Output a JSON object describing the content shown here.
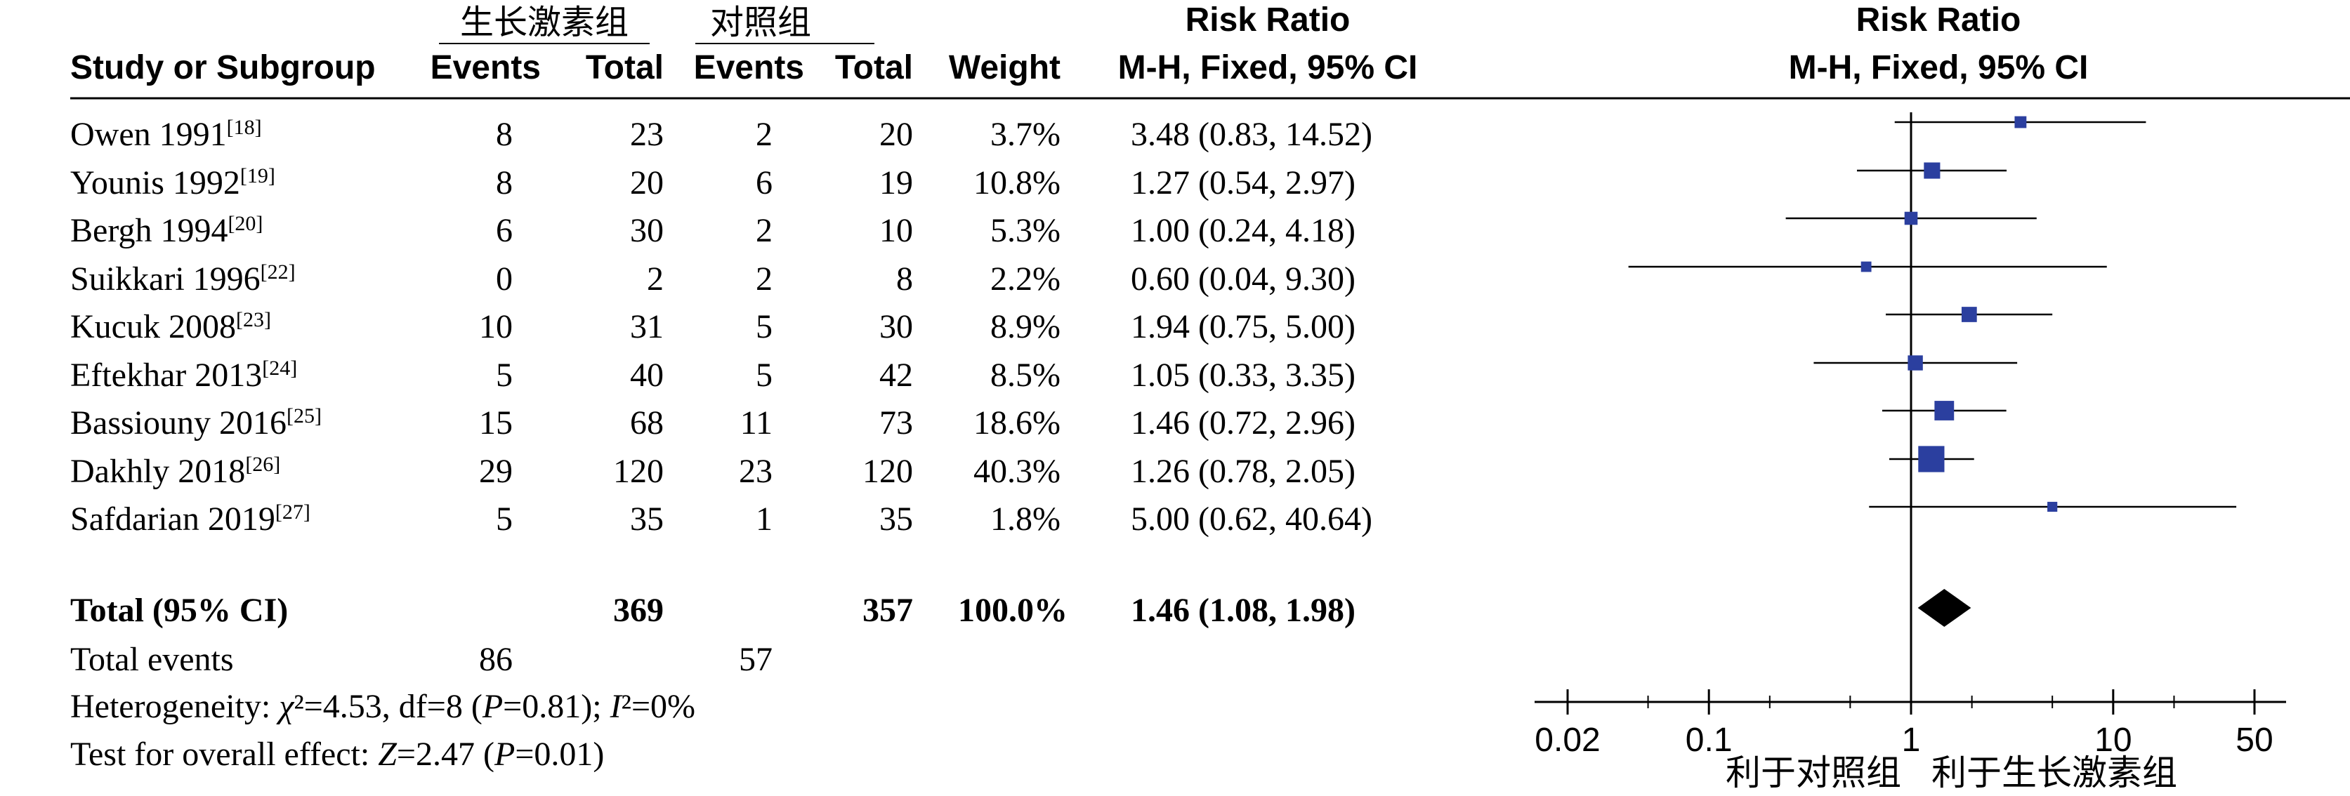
{
  "headers": {
    "group1": "生长激素组",
    "group2": "对照组",
    "study": "Study or Subgroup",
    "events1": "Events",
    "total1": "Total",
    "events2": "Events",
    "total2": "Total",
    "weight": "Weight",
    "rr_title": "Risk Ratio",
    "rr_method": "M-H, Fixed, 95% CI",
    "plot_title": "Risk Ratio",
    "plot_method": "M-H, Fixed, 95% CI"
  },
  "summary": {
    "total_label": "Total (95% CI)",
    "total1": "369",
    "total2": "357",
    "weight": "100.0%",
    "ci_text": "1.46 (1.08, 1.98)",
    "events_label": "Total events",
    "events1": "86",
    "events2": "57",
    "heterogeneity": "Heterogeneity: χ²=4.53, df=8 (P=0.81); I²=0%",
    "overall_effect": "Test for overall effect: Z=2.47 (P=0.01)"
  },
  "axis_labels": {
    "favours_control": "利于对照组",
    "favours_treatment": "利于生长激素组"
  },
  "chart_data": {
    "type": "forest",
    "x_scale": "log",
    "xlim": [
      0.02,
      50
    ],
    "x_ticks": [
      0.02,
      0.1,
      1,
      10,
      50
    ],
    "x_tick_labels": [
      "0.02",
      "0.1",
      "1",
      "10",
      "50"
    ],
    "reference_line": 1,
    "studies": [
      {
        "name": "Owen 1991",
        "ref": "[18]",
        "events1": 8,
        "total1": 23,
        "events2": 2,
        "total2": 20,
        "weight": 3.7,
        "weight_text": "3.7%",
        "rr": 3.48,
        "lo": 0.83,
        "hi": 14.52,
        "ci_text": "3.48 (0.83, 14.52)"
      },
      {
        "name": "Younis 1992",
        "ref": "[19]",
        "events1": 8,
        "total1": 20,
        "events2": 6,
        "total2": 19,
        "weight": 10.8,
        "weight_text": "10.8%",
        "rr": 1.27,
        "lo": 0.54,
        "hi": 2.97,
        "ci_text": "1.27 (0.54, 2.97)"
      },
      {
        "name": "Bergh 1994",
        "ref": "[20]",
        "events1": 6,
        "total1": 30,
        "events2": 2,
        "total2": 10,
        "weight": 5.3,
        "weight_text": "5.3%",
        "rr": 1.0,
        "lo": 0.24,
        "hi": 4.18,
        "ci_text": "1.00 (0.24, 4.18)"
      },
      {
        "name": "Suikkari 1996",
        "ref": "[22]",
        "events1": 0,
        "total1": 2,
        "events2": 2,
        "total2": 8,
        "weight": 2.2,
        "weight_text": "2.2%",
        "rr": 0.6,
        "lo": 0.04,
        "hi": 9.3,
        "ci_text": "0.60 (0.04, 9.30)"
      },
      {
        "name": "Kucuk 2008",
        "ref": "[23]",
        "events1": 10,
        "total1": 31,
        "events2": 5,
        "total2": 30,
        "weight": 8.9,
        "weight_text": "8.9%",
        "rr": 1.94,
        "lo": 0.75,
        "hi": 5.0,
        "ci_text": "1.94 (0.75, 5.00)"
      },
      {
        "name": "Eftekhar 2013",
        "ref": "[24]",
        "events1": 5,
        "total1": 40,
        "events2": 5,
        "total2": 42,
        "weight": 8.5,
        "weight_text": "8.5%",
        "rr": 1.05,
        "lo": 0.33,
        "hi": 3.35,
        "ci_text": "1.05 (0.33, 3.35)"
      },
      {
        "name": "Bassiouny 2016",
        "ref": "[25]",
        "events1": 15,
        "total1": 68,
        "events2": 11,
        "total2": 73,
        "weight": 18.6,
        "weight_text": "18.6%",
        "rr": 1.46,
        "lo": 0.72,
        "hi": 2.96,
        "ci_text": "1.46 (0.72, 2.96)"
      },
      {
        "name": "Dakhly 2018",
        "ref": "[26]",
        "events1": 29,
        "total1": 120,
        "events2": 23,
        "total2": 120,
        "weight": 40.3,
        "weight_text": "40.3%",
        "rr": 1.26,
        "lo": 0.78,
        "hi": 2.05,
        "ci_text": "1.26 (0.78, 2.05)"
      },
      {
        "name": "Safdarian 2019",
        "ref": "[27]",
        "events1": 5,
        "total1": 35,
        "events2": 1,
        "total2": 35,
        "weight": 1.8,
        "weight_text": "1.8%",
        "rr": 5.0,
        "lo": 0.62,
        "hi": 40.64,
        "ci_text": "5.00 (0.62, 40.64)"
      }
    ],
    "pooled": {
      "rr": 1.46,
      "lo": 1.08,
      "hi": 1.98
    },
    "colors": {
      "marker": "#2b3f9f",
      "diamond": "#000000",
      "line": "#000000"
    }
  }
}
